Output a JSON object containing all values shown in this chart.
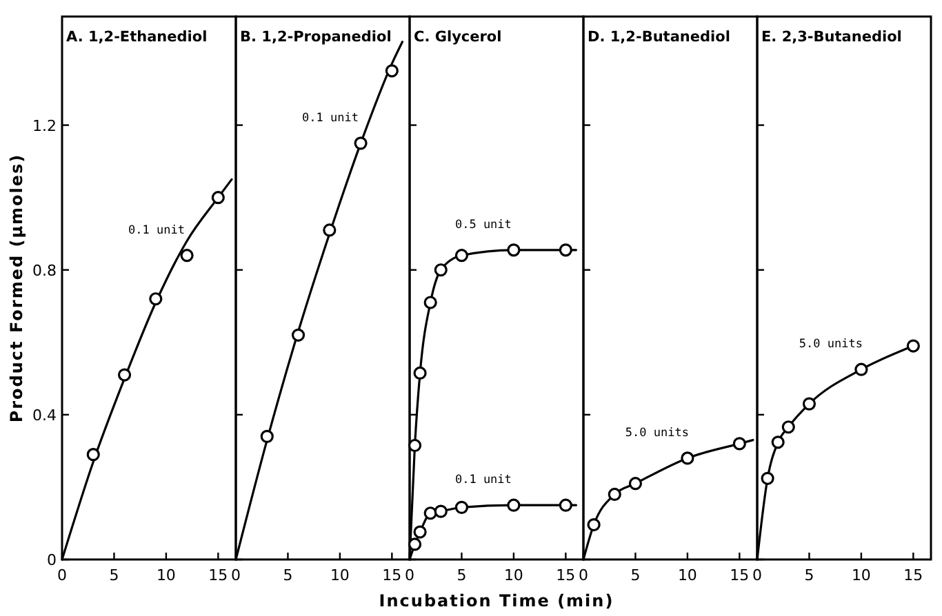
{
  "chart_data": [
    {
      "type": "scatter",
      "title": "A. 1,2-Ethanediol",
      "ylabel": "Product Formed (µmoles)",
      "xlim": [
        0,
        16.7
      ],
      "xticks": [
        0,
        5,
        10,
        15
      ],
      "ylim": [
        0,
        1.5
      ],
      "yticks": [
        0,
        0.4,
        0.8,
        1.2
      ],
      "marker": "circle",
      "line_style": "solid",
      "grid": false,
      "series": [
        {
          "type": "line",
          "marker": "none",
          "color": "#000000",
          "x": [
            0,
            3,
            6,
            9,
            12,
            15,
            16.3
          ],
          "values": [
            0,
            0.27,
            0.5,
            0.71,
            0.88,
            1.0,
            1.05
          ]
        },
        {
          "name": "0.1 unit",
          "color": "#000000",
          "x": [
            3,
            6,
            9,
            12,
            15
          ],
          "values": [
            0.29,
            0.51,
            0.72,
            0.84,
            1.0
          ]
        }
      ]
    },
    {
      "type": "scatter",
      "title": "B. 1,2-Propanediol",
      "xlim": [
        0,
        16.7
      ],
      "xticks": [
        0,
        5,
        10,
        15
      ],
      "ylim": [
        0,
        1.5
      ],
      "yticks": [
        0,
        0.4,
        0.8,
        1.2
      ],
      "tick_labels": "x",
      "marker": "circle",
      "line_style": "solid",
      "grid": false,
      "series": [
        {
          "type": "line",
          "marker": "none",
          "color": "#000000",
          "x": [
            0,
            3,
            6,
            9,
            12,
            15,
            16
          ],
          "values": [
            0,
            0.33,
            0.63,
            0.9,
            1.15,
            1.37,
            1.43
          ]
        },
        {
          "name": "0.1 unit",
          "color": "#000000",
          "x": [
            3,
            6,
            9,
            12,
            15
          ],
          "values": [
            0.34,
            0.62,
            0.91,
            1.15,
            1.35
          ]
        }
      ]
    },
    {
      "type": "scatter",
      "title": "C.  Glycerol",
      "xlabel": "Incubation  Time  (min)",
      "xlim": [
        0,
        16.7
      ],
      "xticks": [
        0,
        5,
        10,
        15
      ],
      "ylim": [
        0,
        1.5
      ],
      "yticks": [
        0,
        0.4,
        0.8,
        1.2
      ],
      "tick_labels": "x",
      "marker": "circle",
      "line_style": "solid",
      "grid": false,
      "series": [
        {
          "type": "line",
          "marker": "none",
          "color": "#000000",
          "x": [
            0,
            0.5,
            1,
            2,
            3,
            5,
            10,
            15,
            16
          ],
          "values": [
            0,
            0.315,
            0.515,
            0.71,
            0.8,
            0.84,
            0.855,
            0.855,
            0.855
          ]
        },
        {
          "name": "0.5 unit",
          "color": "#000000",
          "x": [
            0.5,
            1,
            2,
            3,
            5,
            10,
            15
          ],
          "values": [
            0.315,
            0.515,
            0.71,
            0.8,
            0.84,
            0.855,
            0.855
          ]
        },
        {
          "type": "line",
          "marker": "none",
          "color": "#000000",
          "x": [
            0,
            0.5,
            1,
            2,
            3,
            5,
            10,
            15,
            16
          ],
          "values": [
            0,
            0.042,
            0.076,
            0.128,
            0.133,
            0.144,
            0.15,
            0.15,
            0.15
          ]
        },
        {
          "name": "0.1 unit",
          "color": "#000000",
          "x": [
            0.5,
            1,
            2,
            3,
            5,
            10,
            15
          ],
          "values": [
            0.042,
            0.076,
            0.128,
            0.133,
            0.144,
            0.15,
            0.15
          ]
        }
      ]
    },
    {
      "type": "scatter",
      "title": "D. 1,2-Butanediol",
      "xlim": [
        0,
        16.7
      ],
      "xticks": [
        0,
        5,
        10,
        15
      ],
      "ylim": [
        0,
        1.5
      ],
      "yticks": [
        0,
        0.4,
        0.8,
        1.2
      ],
      "tick_labels": "x",
      "marker": "circle",
      "line_style": "solid",
      "grid": false,
      "series": [
        {
          "type": "line",
          "marker": "none",
          "color": "#000000",
          "x": [
            0,
            1,
            3,
            5,
            10,
            15,
            16.3
          ],
          "values": [
            0,
            0.096,
            0.18,
            0.21,
            0.28,
            0.32,
            0.33
          ]
        },
        {
          "name": "5.0 units",
          "color": "#000000",
          "x": [
            1,
            3,
            5,
            10,
            15
          ],
          "values": [
            0.096,
            0.18,
            0.21,
            0.28,
            0.32
          ]
        }
      ]
    },
    {
      "type": "scatter",
      "title": "E. 2,3-Butanediol",
      "xlim": [
        0,
        16.7
      ],
      "xticks": [
        0,
        5,
        10,
        15
      ],
      "ylim": [
        0,
        1.5
      ],
      "yticks": [
        0,
        0.4,
        0.8,
        1.2
      ],
      "tick_labels": "x",
      "marker": "circle",
      "line_style": "solid",
      "grid": false,
      "series": [
        {
          "type": "line",
          "marker": "none",
          "color": "#000000",
          "x": [
            0,
            1,
            2,
            3,
            5,
            10,
            15
          ],
          "values": [
            0,
            0.224,
            0.324,
            0.366,
            0.43,
            0.525,
            0.59
          ]
        },
        {
          "name": "5.0 units",
          "color": "#000000",
          "x": [
            1,
            2,
            3,
            5,
            10,
            15
          ],
          "values": [
            0.224,
            0.324,
            0.366,
            0.43,
            0.525,
            0.59
          ]
        }
      ]
    }
  ]
}
